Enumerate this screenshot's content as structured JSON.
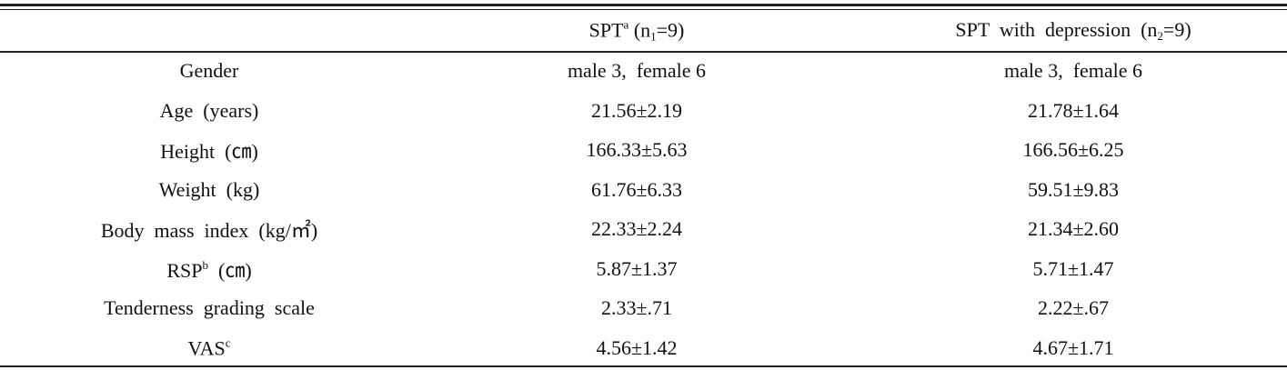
{
  "table": {
    "header": [
      {
        "main": "SPT",
        "sup": "a",
        "after": " (n",
        "sub": "1",
        "tail": "=9)"
      },
      {
        "main": "SPT  with  depression  (n",
        "sub": "2",
        "tail": "=9)"
      }
    ],
    "rows": [
      [
        "Gender",
        "male 3,  female 6",
        "male 3,  female 6"
      ],
      [
        "Age  (years)",
        "21.56±2.19",
        "21.78±1.64"
      ],
      [
        "Height  (㎝)",
        "166.33±5.63",
        "166.56±6.25"
      ],
      [
        "Weight  (kg)",
        "61.76±6.33",
        "59.51±9.83"
      ],
      [
        "Body  mass  index  (kg/㎡)",
        "22.33±2.24",
        "21.34±2.60"
      ],
      [
        {
          "main": "RSP",
          "sup": "b",
          "tail": "  (㎝)"
        },
        "5.87±1.37",
        "5.71±1.47"
      ],
      [
        "Tenderness  grading  scale",
        "2.33±.71",
        "2.22±.67"
      ],
      [
        {
          "main": "VAS",
          "sup": "c"
        },
        "4.56±1.42",
        "4.67±1.71"
      ]
    ]
  }
}
